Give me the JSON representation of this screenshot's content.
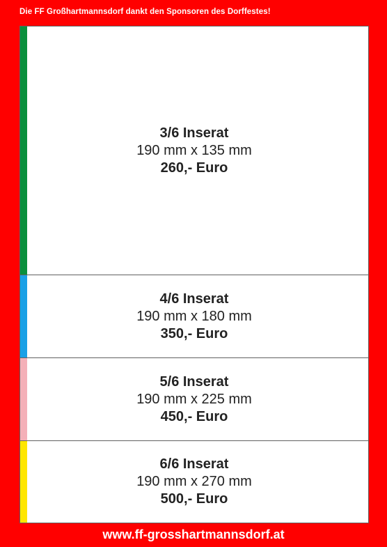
{
  "header": {
    "text": "Die FF Großhartmannsdorf dankt den Sponsoren des Dorffestes!"
  },
  "ads": [
    {
      "title": "3/6 Inserat",
      "dimensions": "190 mm x 135 mm",
      "price": "260,- Euro",
      "stripe_color": "#0a8f3c"
    },
    {
      "title": "4/6 Inserat",
      "dimensions": "190 mm x 180 mm",
      "price": "350,- Euro",
      "stripe_color": "#1aa0e6"
    },
    {
      "title": "5/6 Inserat",
      "dimensions": "190 mm x 225 mm",
      "price": "450,- Euro",
      "stripe_color": "#f4b0b8"
    },
    {
      "title": "6/6 Inserat",
      "dimensions": "190 mm x 270 mm",
      "price": "500,- Euro",
      "stripe_color": "#ffe600"
    }
  ],
  "footer": {
    "url": "www.ff-grosshartmannsdorf.at"
  },
  "colors": {
    "background": "#ff0000",
    "panel": "#ffffff",
    "text": "#222222"
  }
}
